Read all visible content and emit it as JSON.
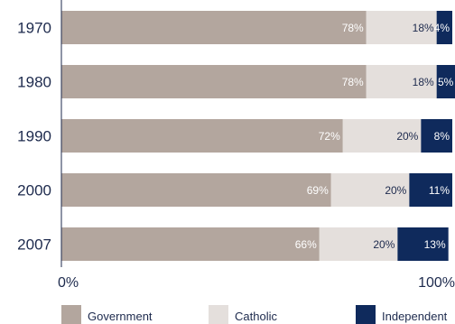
{
  "chart_data": {
    "type": "bar",
    "orientation": "horizontal",
    "stacked": true,
    "categories": [
      "1970",
      "1980",
      "1990",
      "2000",
      "2007"
    ],
    "series": [
      {
        "name": "Government",
        "values": [
          78,
          78,
          72,
          69,
          66
        ],
        "labels": [
          "78%",
          "78%",
          "72%",
          "69%",
          "66%"
        ],
        "color": "#b3a69e",
        "label_color": "#ffffff"
      },
      {
        "name": "Catholic",
        "values": [
          18,
          18,
          20,
          20,
          20
        ],
        "labels": [
          "18%",
          "18%",
          "20%",
          "20%",
          "20%"
        ],
        "color": "#e4dfdc",
        "label_color": "#1d2a4d"
      },
      {
        "name": "Independent",
        "values": [
          4,
          5,
          8,
          11,
          13
        ],
        "labels": [
          "4%",
          "5%",
          "8%",
          "11%",
          "13%"
        ],
        "color": "#0f2a5c",
        "label_color": "#ffffff"
      }
    ],
    "xlim": [
      0,
      100
    ],
    "xticks": [
      "0%",
      "100%"
    ],
    "grid": false,
    "legend_position": "bottom",
    "axis_color": "#1d2a4d"
  }
}
